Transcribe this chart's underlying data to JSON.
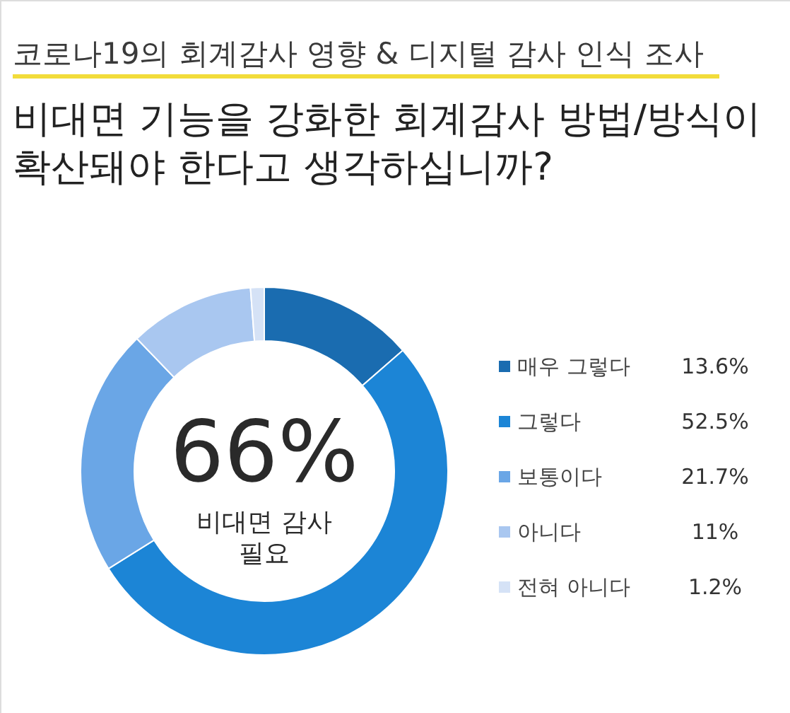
{
  "chart_data": {
    "type": "donut",
    "title": "코로나19의 회계감사 영향 & 디지털 감사 인식 조사",
    "subtitle": "비대면 기능을 강화한 회계감사 방법/방식이\n확산돼야 한다고 생각하십니까?",
    "categories": [
      "매우 그렇다",
      "그렇다",
      "보통이다",
      "아니다",
      "전혀 아니다"
    ],
    "values": [
      13.6,
      52.5,
      21.7,
      11,
      1.2
    ],
    "colors": [
      "#1a6cb0",
      "#1c85d6",
      "#6aa6e6",
      "#a9c7f0",
      "#d5e2f6"
    ],
    "value_labels": [
      "13.6%",
      "52.5%",
      "21.7%",
      "11%",
      "1.2%"
    ],
    "legend": "right",
    "annotations": [
      "66%",
      "비대면 감사\n필요"
    ]
  }
}
